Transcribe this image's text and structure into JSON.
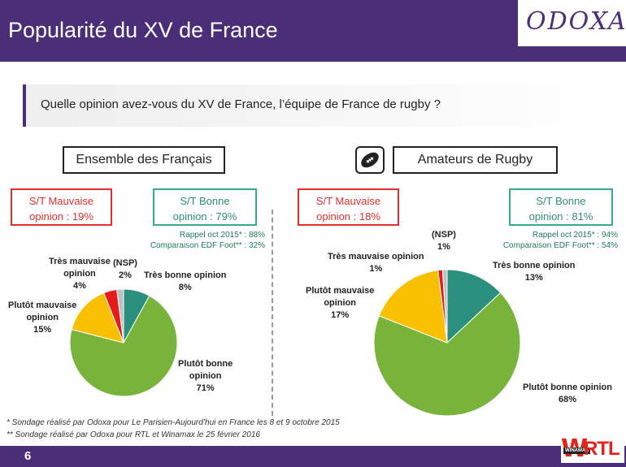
{
  "header": {
    "title": "Popularité du XV de France",
    "logo": "ODOXA"
  },
  "question": "Quelle opinion avez-vous du XV de France, l’équipe de France de rugby ?",
  "colors": {
    "tres_bonne": "#2a8f7c",
    "plutot_bonne": "#78b33c",
    "plutot_mauvaise": "#f8c000",
    "tres_mauvaise": "#e41c1c",
    "nsp": "#bfbfbf",
    "purple": "#4a2f78"
  },
  "chart_data": [
    {
      "type": "pie",
      "title": "Ensemble des Français",
      "st_bad": {
        "line1": "S/T Mauvaise",
        "line2": "opinion : 19%"
      },
      "st_good": {
        "line1": "S/T Bonne",
        "line2": "opinion : 79%"
      },
      "recall": {
        "line1": "Rappel oct 2015* : 88%",
        "line2": "Comparaison EDF Foot** : 32%"
      },
      "slices": [
        {
          "label_lines": [
            "Très bonne opinion"
          ],
          "value": 8,
          "value_label": "8%",
          "color_key": "tres_bonne"
        },
        {
          "label_lines": [
            "Plutôt bonne",
            "opinion"
          ],
          "value": 71,
          "value_label": "71%",
          "color_key": "plutot_bonne"
        },
        {
          "label_lines": [
            "Plutôt mauvaise",
            "opinion"
          ],
          "value": 15,
          "value_label": "15%",
          "color_key": "plutot_mauvaise"
        },
        {
          "label_lines": [
            "Très mauvaise",
            "opinion"
          ],
          "value": 4,
          "value_label": "4%",
          "color_key": "tres_mauvaise"
        },
        {
          "label_lines": [
            "(NSP)"
          ],
          "value": 2,
          "value_label": "2%",
          "color_key": "nsp"
        }
      ]
    },
    {
      "type": "pie",
      "title": "Amateurs de Rugby",
      "icon": "rugby-ball-icon",
      "st_bad": {
        "line1": "S/T Mauvaise",
        "line2": "opinion : 18%"
      },
      "st_good": {
        "line1": "S/T Bonne",
        "line2": "opinion : 81%"
      },
      "recall": {
        "line1": "Rappel oct 2015* : 94%",
        "line2": "Comparaison EDF Foot** : 54%"
      },
      "slices": [
        {
          "label_lines": [
            "Très bonne opinion"
          ],
          "value": 13,
          "value_label": "13%",
          "color_key": "tres_bonne"
        },
        {
          "label_lines": [
            "Plutôt bonne opinion"
          ],
          "value": 68,
          "value_label": "68%",
          "color_key": "plutot_bonne"
        },
        {
          "label_lines": [
            "Plutôt mauvaise",
            "opinion"
          ],
          "value": 17,
          "value_label": "17%",
          "color_key": "plutot_mauvaise"
        },
        {
          "label_lines": [
            "Très mauvaise opinion"
          ],
          "value": 1,
          "value_label": "1%",
          "color_key": "tres_mauvaise"
        },
        {
          "label_lines": [
            "(NSP)"
          ],
          "value": 1,
          "value_label": "1%",
          "color_key": "nsp"
        }
      ]
    }
  ],
  "footnotes": [
    "* Sondage réalisé par Odoxa pour Le Parisien-Aujourd’hui en France  les 8 et 9 octobre 2015",
    "** Sondage réalisé par Odoxa pour RTL et Winamax le 25 février 2016"
  ],
  "footer": {
    "page": "6",
    "brand_w": "W",
    "brand_rtl": "RTL",
    "brand_winamax": "WINAMAX"
  }
}
